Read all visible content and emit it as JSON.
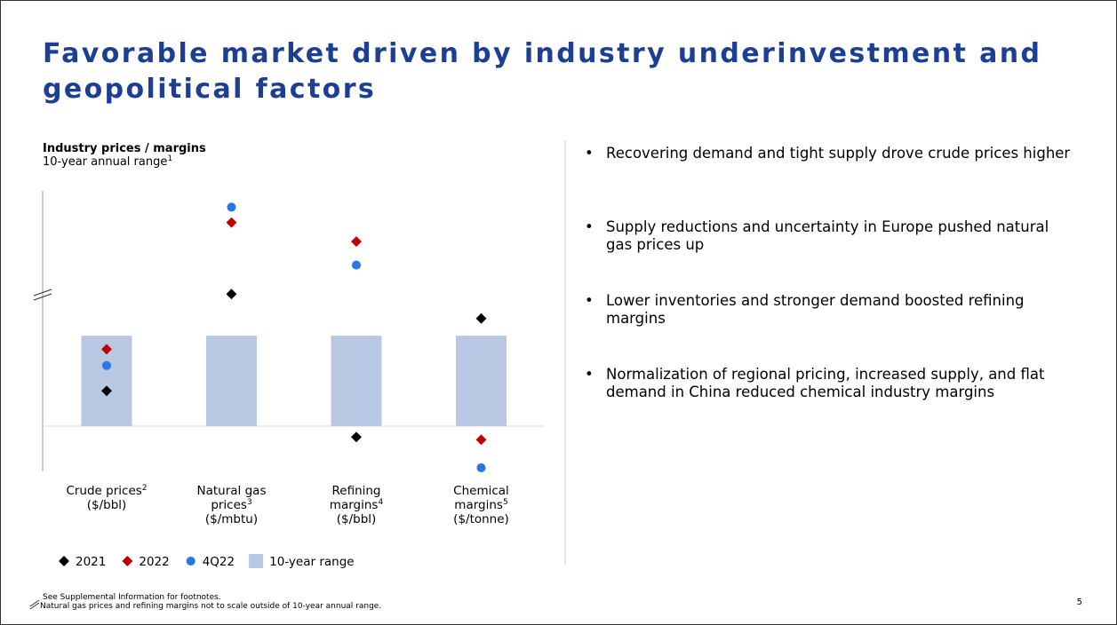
{
  "title": "Favorable market driven by industry underinvestment and geopolitical factors",
  "chart_data": {
    "type": "range-dot",
    "title": "Industry prices / margins",
    "subtitle": "10-year annual range",
    "subtitle_note": "1",
    "categories": [
      {
        "lines": [
          "Crude prices"
        ],
        "note": "2",
        "unit": "($/bbl)"
      },
      {
        "lines": [
          "Natural gas",
          "prices"
        ],
        "note": "3",
        "unit": "($/mbtu)"
      },
      {
        "lines": [
          "Refining",
          "margins"
        ],
        "note": "4",
        "unit": "($/bbl)"
      },
      {
        "lines": [
          "Chemical",
          "margins"
        ],
        "note": "5",
        "unit": "($/tonne)"
      }
    ],
    "range": {
      "name": "10-year range",
      "color": "#b8c7e2",
      "low": [
        0,
        0,
        0,
        0
      ],
      "high": [
        1,
        1,
        1,
        1
      ]
    },
    "series": [
      {
        "name": "2021",
        "color": "#000000",
        "marker": "diamond",
        "values": [
          0.39,
          1.46,
          -0.12,
          1.19
        ]
      },
      {
        "name": "2022",
        "color": "#c00000",
        "marker": "diamond",
        "values": [
          0.85,
          2.25,
          2.04,
          -0.15
        ]
      },
      {
        "name": "4Q22",
        "color": "#2b78e4",
        "marker": "circle",
        "values": [
          0.67,
          2.42,
          1.78,
          -0.46
        ]
      }
    ],
    "ylim": [
      -0.5,
      2.6
    ]
  },
  "bullets": [
    "Recovering demand and tight supply drove crude prices higher",
    "Supply reductions and uncertainty in Europe pushed natural gas prices up",
    "Lower inventories and stronger demand boosted refining margins",
    "Normalization of regional pricing, increased supply, and flat demand in China reduced chemical industry margins"
  ],
  "footnotes": [
    "See Supplemental Information for footnotes.",
    "Natural gas prices and refining margins not to scale outside of 10-year annual range."
  ],
  "page_number": "5"
}
